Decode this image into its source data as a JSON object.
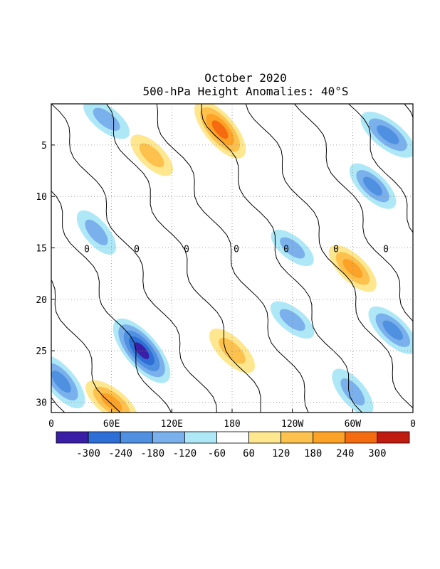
{
  "chart_data": {
    "type": "heatmap",
    "title": "October 2020",
    "subtitle": "500-hPa Height Anomalies: 40°S",
    "xlabel": "",
    "ylabel": "",
    "x_ticks": [
      "0",
      "60E",
      "120E",
      "180",
      "120W",
      "60W",
      "0"
    ],
    "x_tick_values": [
      0,
      60,
      120,
      180,
      240,
      300,
      360
    ],
    "y_ticks": [
      "5",
      "10",
      "15",
      "20",
      "25",
      "30"
    ],
    "y_tick_values": [
      5,
      10,
      15,
      20,
      25,
      30
    ],
    "xlim": [
      0,
      360
    ],
    "ylim": [
      1,
      31
    ],
    "y_inverted": true,
    "grid": "dotted",
    "contour_label": "0",
    "colorbar": {
      "labels": [
        "-300",
        "-240",
        "-180",
        "-120",
        "-60",
        "60",
        "120",
        "180",
        "240",
        "300"
      ],
      "levels": [
        -300,
        -240,
        -180,
        -120,
        -60,
        60,
        120,
        180,
        240,
        300
      ],
      "colors": [
        "#3a1fa6",
        "#2d6fd6",
        "#4f90e0",
        "#7ab0ec",
        "#aee8f6",
        "#ffffff",
        "#ffe790",
        "#fdc14d",
        "#fca226",
        "#f56b10",
        "#c01b10"
      ]
    },
    "anomaly_features": [
      {
        "lon": 55,
        "day": 2.5,
        "value": -150
      },
      {
        "lon": 100,
        "day": 6,
        "value": 140
      },
      {
        "lon": 168,
        "day": 3.5,
        "value": 260
      },
      {
        "lon": 335,
        "day": 4,
        "value": -220
      },
      {
        "lon": 320,
        "day": 9,
        "value": -180
      },
      {
        "lon": 45,
        "day": 13.5,
        "value": -140
      },
      {
        "lon": 240,
        "day": 15,
        "value": -120
      },
      {
        "lon": 300,
        "day": 17,
        "value": 190
      },
      {
        "lon": 90,
        "day": 25,
        "value": -320
      },
      {
        "lon": 240,
        "day": 22,
        "value": -130
      },
      {
        "lon": 340,
        "day": 23,
        "value": -200
      },
      {
        "lon": 10,
        "day": 28,
        "value": -220
      },
      {
        "lon": 60,
        "day": 30,
        "value": 200
      },
      {
        "lon": 180,
        "day": 25,
        "value": 170
      },
      {
        "lon": 300,
        "day": 29,
        "value": -160
      }
    ]
  }
}
